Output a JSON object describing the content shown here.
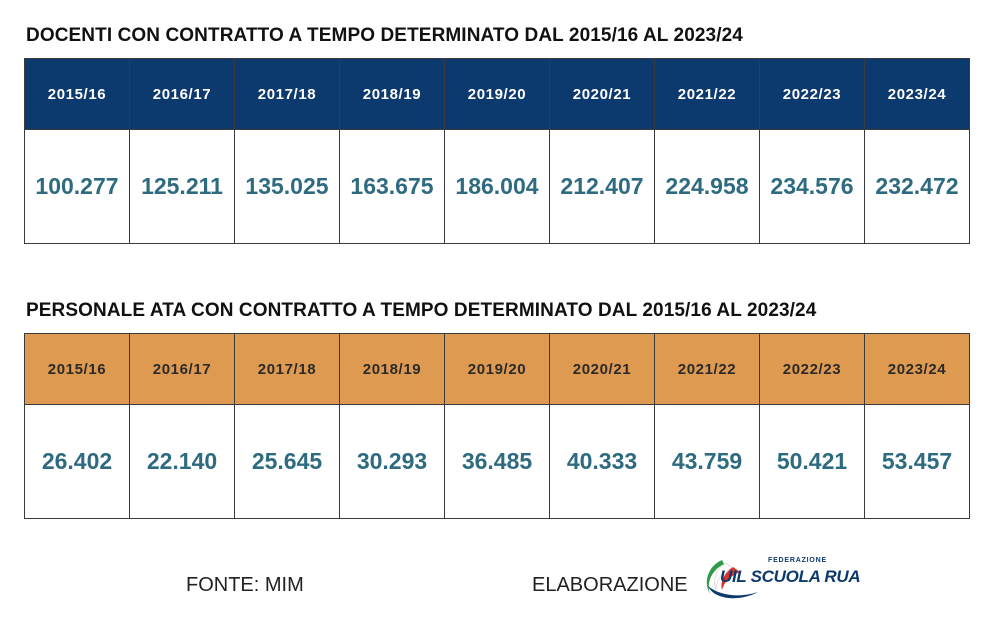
{
  "chart_data": [
    {
      "type": "table",
      "title": "DOCENTI CON CONTRATTO A TEMPO DETERMINATO DAL 2015/16 AL 2023/24",
      "categories": [
        "2015/16",
        "2016/17",
        "2017/18",
        "2018/19",
        "2019/20",
        "2020/21",
        "2021/22",
        "2022/23",
        "2023/24"
      ],
      "values": [
        "100.277",
        "125.211",
        "135.025",
        "163.675",
        "186.004",
        "212.407",
        "224.958",
        "234.576",
        "232.472"
      ],
      "header_color": "#0d3a6e"
    },
    {
      "type": "table",
      "title": "PERSONALE ATA CON CONTRATTO A TEMPO DETERMINATO DAL 2015/16 AL 2023/24",
      "categories": [
        "2015/16",
        "2016/17",
        "2017/18",
        "2018/19",
        "2019/20",
        "2020/21",
        "2021/22",
        "2022/23",
        "2023/24"
      ],
      "values": [
        "26.402",
        "22.140",
        "25.645",
        "30.293",
        "36.485",
        "40.333",
        "43.759",
        "50.421",
        "53.457"
      ],
      "header_color": "#df9a51"
    }
  ],
  "footer": {
    "source": "FONTE: MIM",
    "elaboration": "ELABORAZIONE",
    "logo": {
      "top_text": "FEDERAZIONE",
      "main_text": "UIL SCUOLA RUA",
      "icon": "uil-scuola-logo-icon"
    }
  },
  "colors": {
    "value_text": "#2e6b80",
    "logo_blue": "#0d3a6e",
    "logo_green": "#2e9a4a",
    "logo_red": "#d8322e"
  }
}
